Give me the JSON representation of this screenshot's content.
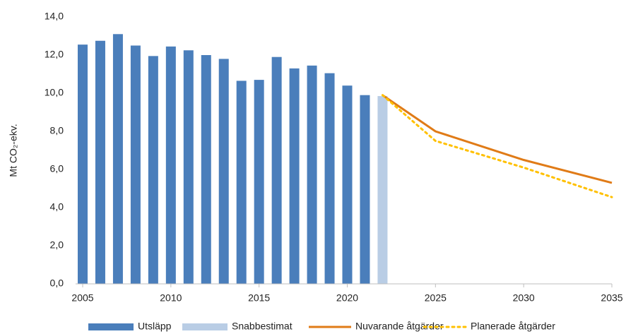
{
  "chart_data": {
    "type": "combo",
    "y_label": "Mt CO₂-ekv.",
    "xlim": [
      2005,
      2035
    ],
    "xticks": [
      2005,
      2010,
      2015,
      2020,
      2025,
      2030,
      2035
    ],
    "ylim": [
      0,
      14
    ],
    "yticks": [
      {
        "value": 0,
        "label": "0,0"
      },
      {
        "value": 2,
        "label": "2,0"
      },
      {
        "value": 4,
        "label": "4,0"
      },
      {
        "value": 6,
        "label": "6,0"
      },
      {
        "value": 8,
        "label": "8,0"
      },
      {
        "value": 10,
        "label": "10,0"
      },
      {
        "value": 12,
        "label": "12,0"
      },
      {
        "value": 14,
        "label": "14,0"
      }
    ],
    "grid": false,
    "legend": "bottom",
    "series": [
      {
        "name": "Utsläpp",
        "type": "bar",
        "color": "#4a7ebb",
        "x": [
          2005,
          2006,
          2007,
          2008,
          2009,
          2010,
          2011,
          2012,
          2013,
          2014,
          2015,
          2016,
          2017,
          2018,
          2019,
          2020,
          2021
        ],
        "values": [
          12.55,
          12.75,
          13.1,
          12.5,
          11.95,
          12.45,
          12.25,
          12.0,
          11.8,
          10.65,
          10.7,
          11.9,
          11.3,
          11.45,
          11.05,
          10.4,
          9.9
        ]
      },
      {
        "name": "Snabbestimat",
        "type": "bar",
        "color": "#b9cde5",
        "x": [
          2022
        ],
        "values": [
          9.85
        ]
      },
      {
        "name": "Nuvarande åtgärder",
        "type": "line",
        "style": "solid",
        "color": "#e07b17",
        "x": [
          2022,
          2025,
          2030,
          2035
        ],
        "values": [
          9.9,
          8.0,
          6.5,
          5.3
        ]
      },
      {
        "name": "Planerade åtgärder",
        "type": "line",
        "style": "dotted",
        "color": "#ffc000",
        "x": [
          2022,
          2025,
          2030,
          2035
        ],
        "values": [
          9.9,
          7.5,
          6.1,
          4.55
        ]
      }
    ]
  }
}
